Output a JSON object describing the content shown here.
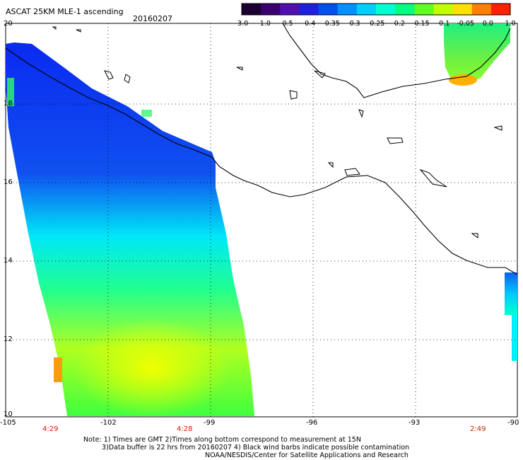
{
  "title": "ASCAT 25KM MLE-1 ascending",
  "date": "20160207",
  "colorbar": {
    "labels": [
      "-3.0",
      "-1.0",
      "-0.5",
      "-0.4",
      "-0.35",
      "-0.3",
      "-0.25",
      "-0.2",
      "-0.15",
      "-0.1",
      "-0.05",
      "0.0",
      "1.0"
    ],
    "colors": [
      "#1a0030",
      "#3a0070",
      "#5010b0",
      "#2020e0",
      "#0050f0",
      "#0090ff",
      "#00d0ff",
      "#00ffd0",
      "#00ff80",
      "#60ff20",
      "#c0ff00",
      "#ffe000",
      "#ff8000",
      "#ff2000"
    ]
  },
  "latitude_labels": [
    "20",
    "18",
    "16",
    "14",
    "12",
    "10"
  ],
  "longitude_labels": [
    "-105",
    "-102",
    "-99",
    "-96",
    "-93",
    "-90"
  ],
  "pass_times": [
    "4:29",
    "4:28",
    "2:49"
  ],
  "notes": [
    "Note: 1) Times are GMT 2)Times along bottom correspond to measurement at 15N",
    "3)Data buffer is 22 hrs from 20160207 4) Black wind barbs indicate possible contamination",
    "NOAA/NESDIS/Center for Satellite Applications and Research"
  ]
}
